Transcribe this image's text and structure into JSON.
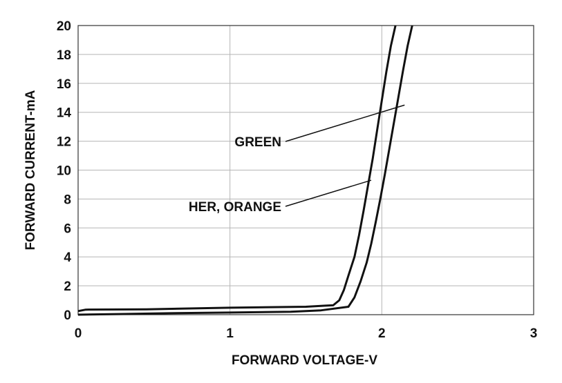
{
  "chart_data": {
    "type": "line",
    "title": "",
    "xlabel": "FORWARD VOLTAGE-V",
    "ylabel": "FORWARD CURRENT-mA",
    "xlim": [
      0,
      3
    ],
    "ylim": [
      0,
      20
    ],
    "xticks": [
      0,
      1,
      2,
      3
    ],
    "yticks": [
      0,
      2,
      4,
      6,
      8,
      10,
      12,
      14,
      16,
      18,
      20
    ],
    "grid": true,
    "legend": "none",
    "series": [
      {
        "name": "HER, ORANGE",
        "x": [
          0,
          0.05,
          0.45,
          1.0,
          1.5,
          1.62,
          1.68,
          1.72,
          1.75,
          1.78,
          1.82,
          1.85,
          1.88,
          1.91,
          1.94,
          1.97,
          2.0,
          2.03,
          2.06,
          2.09
        ],
        "y": [
          0.25,
          0.35,
          0.37,
          0.48,
          0.55,
          0.62,
          0.65,
          1.0,
          1.7,
          2.7,
          4.0,
          5.5,
          7.2,
          9.0,
          10.8,
          12.8,
          14.8,
          16.8,
          18.6,
          20
        ]
      },
      {
        "name": "GREEN",
        "x": [
          0,
          0.3,
          0.6,
          1.0,
          1.4,
          1.6,
          1.78,
          1.82,
          1.86,
          1.9,
          1.93,
          1.96,
          1.99,
          2.02,
          2.05,
          2.08,
          2.11,
          2.14,
          2.17,
          2.2
        ],
        "y": [
          0.0,
          0.05,
          0.1,
          0.15,
          0.2,
          0.3,
          0.55,
          1.2,
          2.3,
          3.6,
          4.9,
          6.4,
          8.0,
          9.7,
          11.5,
          13.3,
          15.1,
          16.9,
          18.6,
          20
        ]
      }
    ],
    "annotations": [
      {
        "text": "GREEN",
        "x": 2.15,
        "y": 14.5
      },
      {
        "text": "HER, ORANGE",
        "x": 1.93,
        "y": 9.3
      }
    ]
  }
}
